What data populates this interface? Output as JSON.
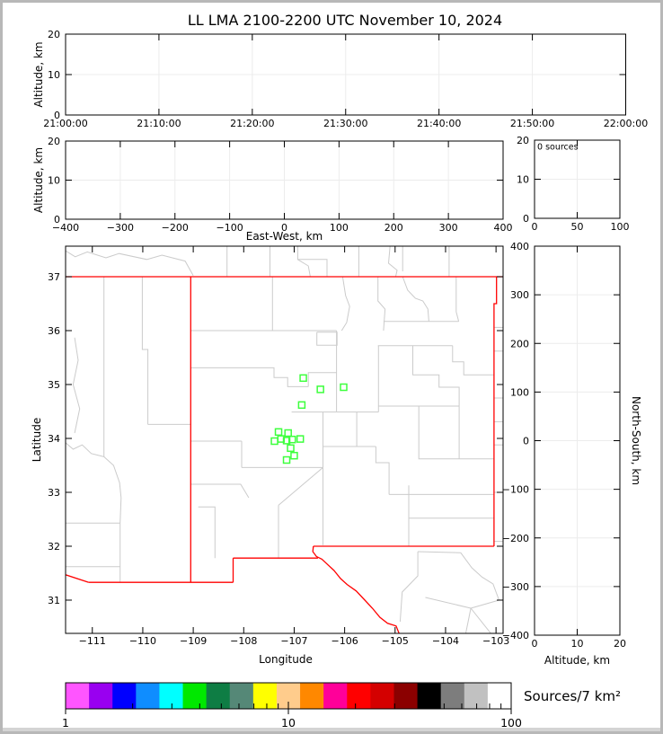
{
  "title": "LL LMA 2100-2200 UTC November 10, 2024",
  "frame": {
    "bg": "#ffffff",
    "border_color": "#b8b8b8",
    "band_color": "#d4d4d4"
  },
  "colors": {
    "axis": "#000000",
    "grid": "#ececec",
    "state_border": "#ff0000",
    "county_border": "#cbcbcb",
    "station": "#3dff3d"
  },
  "panels": {
    "time_altitude": {
      "y_label": "Altitude, km",
      "x_tick_labels": [
        "21:00:00",
        "21:10:00",
        "21:20:00",
        "21:30:00",
        "21:40:00",
        "21:50:00",
        "22:00:00"
      ],
      "y_tick_labels": [
        "0",
        "10",
        "20"
      ]
    },
    "eastwest_altitude": {
      "x_label": "East-West, km",
      "y_label": "Altitude, km",
      "x_tick_labels": [
        "−400",
        "−300",
        "−200",
        "−100",
        "0",
        "100",
        "200",
        "300",
        "400"
      ],
      "y_tick_labels": [
        "0",
        "10",
        "20"
      ]
    },
    "altitude_histogram": {
      "annotation": "0 sources",
      "x_tick_labels": [
        "0",
        "50",
        "100"
      ],
      "y_tick_labels": [
        "0",
        "10",
        "20"
      ]
    },
    "map": {
      "x_label": "Longitude",
      "y_label": "Latitude",
      "x_tick_values": [
        -111,
        -110,
        -109,
        -108,
        -107,
        -106,
        -105,
        -104,
        -103
      ],
      "x_tick_labels": [
        "−111",
        "−110",
        "−109",
        "−108",
        "−107",
        "−106",
        "−105",
        "−104",
        "−103"
      ],
      "y_tick_values": [
        31,
        32,
        33,
        34,
        35,
        36,
        37
      ],
      "y_tick_labels": [
        "31",
        "32",
        "33",
        "34",
        "35",
        "36",
        "37"
      ],
      "lon_range": [
        -111.53,
        -102.86
      ],
      "lat_range": [
        30.383,
        37.567
      ],
      "stations": [
        [
          -106.82,
          35.12
        ],
        [
          -106.48,
          34.91
        ],
        [
          -106.02,
          34.95
        ],
        [
          -106.85,
          34.62
        ],
        [
          -107.31,
          34.12
        ],
        [
          -107.12,
          34.1
        ],
        [
          -107.39,
          33.95
        ],
        [
          -107.26,
          33.99
        ],
        [
          -107.15,
          33.96
        ],
        [
          -107.04,
          33.98
        ],
        [
          -106.88,
          33.99
        ],
        [
          -107.07,
          33.82
        ],
        [
          -107.0,
          33.68
        ],
        [
          -107.15,
          33.6
        ]
      ],
      "state_borders": [
        [
          [
            -111.53,
            37.0
          ],
          [
            -102.86,
            37.0
          ]
        ],
        [
          [
            -109.05,
            37.0
          ],
          [
            -109.05,
            31.33
          ]
        ],
        [
          [
            -102.99,
            37.0
          ],
          [
            -102.99,
            36.5
          ],
          [
            -103.04,
            36.5
          ],
          [
            -103.04,
            32.0
          ]
        ],
        [
          [
            -103.04,
            32.0
          ],
          [
            -106.62,
            32.0
          ]
        ],
        [
          [
            -106.62,
            32.0
          ],
          [
            -106.63,
            31.9
          ],
          [
            -106.56,
            31.81
          ],
          [
            -106.45,
            31.76
          ],
          [
            -106.36,
            31.68
          ],
          [
            -106.21,
            31.55
          ],
          [
            -106.08,
            31.4
          ],
          [
            -105.95,
            31.29
          ],
          [
            -105.77,
            31.17
          ],
          [
            -105.6,
            31.0
          ],
          [
            -105.45,
            30.85
          ],
          [
            -105.3,
            30.68
          ],
          [
            -105.15,
            30.57
          ],
          [
            -104.98,
            30.52
          ],
          [
            -104.92,
            30.38
          ]
        ],
        [
          [
            -106.53,
            31.78
          ],
          [
            -108.21,
            31.78
          ]
        ],
        [
          [
            -108.21,
            31.78
          ],
          [
            -108.21,
            31.33
          ]
        ],
        [
          [
            -108.21,
            31.33
          ],
          [
            -111.07,
            31.33
          ]
        ],
        [
          [
            -111.07,
            31.33
          ],
          [
            -111.53,
            31.47
          ]
        ]
      ],
      "county_borders": [
        [
          [
            -111.53,
            37.48
          ],
          [
            -111.34,
            37.37
          ],
          [
            -111.1,
            37.46
          ],
          [
            -110.73,
            37.35
          ],
          [
            -110.47,
            37.43
          ],
          [
            -109.92,
            37.32
          ],
          [
            -109.62,
            37.4
          ],
          [
            -109.16,
            37.29
          ],
          [
            -109.0,
            37.02
          ]
        ],
        [
          [
            -108.33,
            37.57
          ],
          [
            -108.33,
            37.0
          ]
        ],
        [
          [
            -107.48,
            37.57
          ],
          [
            -107.48,
            37.0
          ]
        ],
        [
          [
            -106.93,
            37.57
          ],
          [
            -106.93,
            37.32
          ],
          [
            -106.35,
            37.32
          ],
          [
            -106.35,
            37.0
          ]
        ],
        [
          [
            -106.93,
            37.32
          ],
          [
            -106.72,
            37.2
          ],
          [
            -106.68,
            37.0
          ]
        ],
        [
          [
            -105.72,
            37.57
          ],
          [
            -105.72,
            37.0
          ]
        ],
        [
          [
            -105.1,
            37.57
          ],
          [
            -105.13,
            37.25
          ],
          [
            -104.96,
            37.12
          ],
          [
            -104.99,
            37.0
          ]
        ],
        [
          [
            -104.85,
            37.57
          ],
          [
            -104.85,
            37.1
          ]
        ],
        [
          [
            -103.93,
            37.57
          ],
          [
            -103.93,
            37.0
          ]
        ],
        [
          [
            -110.77,
            37.0
          ],
          [
            -110.77,
            33.66
          ]
        ],
        [
          [
            -110.01,
            37.0
          ],
          [
            -110.01,
            35.65
          ],
          [
            -109.9,
            35.65
          ],
          [
            -109.9,
            34.26
          ]
        ],
        [
          [
            -109.9,
            34.26
          ],
          [
            -109.05,
            34.26
          ]
        ],
        [
          [
            -111.53,
            33.92
          ],
          [
            -111.38,
            33.8
          ],
          [
            -111.2,
            33.88
          ],
          [
            -111.02,
            33.72
          ],
          [
            -110.77,
            33.66
          ]
        ],
        [
          [
            -110.77,
            33.66
          ],
          [
            -110.58,
            33.5
          ],
          [
            -110.46,
            33.18
          ],
          [
            -110.43,
            32.9
          ],
          [
            -110.45,
            32.43
          ]
        ],
        [
          [
            -111.53,
            32.43
          ],
          [
            -110.45,
            32.43
          ]
        ],
        [
          [
            -110.45,
            32.43
          ],
          [
            -110.45,
            31.33
          ]
        ],
        [
          [
            -111.53,
            31.62
          ],
          [
            -110.45,
            31.62
          ]
        ],
        [
          [
            -111.35,
            35.87
          ],
          [
            -111.28,
            35.45
          ],
          [
            -111.38,
            35.0
          ],
          [
            -111.25,
            34.55
          ],
          [
            -111.35,
            34.1
          ]
        ],
        [
          [
            -109.05,
            36.0
          ],
          [
            -106.16,
            36.0
          ]
        ],
        [
          [
            -107.43,
            37.0
          ],
          [
            -107.43,
            36.0
          ]
        ],
        [
          [
            -106.04,
            37.0
          ],
          [
            -105.98,
            36.65
          ],
          [
            -105.9,
            36.45
          ],
          [
            -105.96,
            36.15
          ],
          [
            -106.06,
            36.0
          ]
        ],
        [
          [
            -105.34,
            37.0
          ],
          [
            -105.34,
            36.55
          ],
          [
            -105.2,
            36.4
          ],
          [
            -105.23,
            36.0
          ]
        ],
        [
          [
            -103.79,
            37.0
          ],
          [
            -103.79,
            36.35
          ],
          [
            -103.74,
            36.17
          ]
        ],
        [
          [
            -105.23,
            36.17
          ],
          [
            -103.74,
            36.17
          ]
        ],
        [
          [
            -104.85,
            37.0
          ],
          [
            -104.75,
            36.75
          ],
          [
            -104.6,
            36.6
          ],
          [
            -104.45,
            36.55
          ],
          [
            -104.35,
            36.4
          ],
          [
            -104.33,
            36.17
          ]
        ],
        [
          [
            -106.55,
            35.97
          ],
          [
            -106.15,
            35.97
          ],
          [
            -106.15,
            35.73
          ],
          [
            -106.55,
            35.73
          ],
          [
            -106.55,
            35.97
          ]
        ],
        [
          [
            -106.16,
            36.0
          ],
          [
            -106.16,
            34.5
          ]
        ],
        [
          [
            -109.05,
            35.31
          ],
          [
            -107.4,
            35.31
          ],
          [
            -107.4,
            35.13
          ],
          [
            -107.13,
            35.13
          ],
          [
            -107.13,
            34.96
          ],
          [
            -106.72,
            34.96
          ]
        ],
        [
          [
            -106.72,
            34.96
          ],
          [
            -106.72,
            35.22
          ],
          [
            -106.16,
            35.22
          ]
        ],
        [
          [
            -107.05,
            34.49
          ],
          [
            -105.33,
            34.49
          ]
        ],
        [
          [
            -105.33,
            35.72
          ],
          [
            -105.33,
            34.49
          ]
        ],
        [
          [
            -105.34,
            35.72
          ],
          [
            -103.86,
            35.72
          ]
        ],
        [
          [
            -103.86,
            35.72
          ],
          [
            -103.86,
            35.42
          ],
          [
            -103.64,
            35.42
          ],
          [
            -103.64,
            35.18
          ],
          [
            -103.04,
            35.18
          ]
        ],
        [
          [
            -104.65,
            35.72
          ],
          [
            -104.65,
            35.18
          ],
          [
            -104.13,
            35.18
          ],
          [
            -104.13,
            34.95
          ],
          [
            -103.73,
            34.95
          ],
          [
            -103.73,
            34.6
          ]
        ],
        [
          [
            -106.43,
            34.49
          ],
          [
            -106.43,
            33.46
          ]
        ],
        [
          [
            -106.43,
            33.85
          ],
          [
            -105.38,
            33.85
          ]
        ],
        [
          [
            -105.76,
            34.49
          ],
          [
            -105.76,
            33.85
          ]
        ],
        [
          [
            -105.38,
            33.85
          ],
          [
            -105.38,
            33.55
          ],
          [
            -105.12,
            33.55
          ],
          [
            -105.12,
            32.96
          ]
        ],
        [
          [
            -108.04,
            33.46
          ],
          [
            -106.43,
            33.46
          ]
        ],
        [
          [
            -106.43,
            33.46
          ],
          [
            -107.31,
            32.76
          ]
        ],
        [
          [
            -107.31,
            32.76
          ],
          [
            -107.31,
            31.78
          ]
        ],
        [
          [
            -106.43,
            33.46
          ],
          [
            -106.43,
            32.02
          ]
        ],
        [
          [
            -109.05,
            33.15
          ],
          [
            -108.06,
            33.15
          ],
          [
            -107.9,
            32.9
          ]
        ],
        [
          [
            -108.9,
            32.73
          ],
          [
            -108.57,
            32.73
          ],
          [
            -108.57,
            31.78
          ]
        ],
        [
          [
            -109.05,
            33.95
          ],
          [
            -108.04,
            33.95
          ]
        ],
        [
          [
            -108.04,
            33.95
          ],
          [
            -108.04,
            33.46
          ]
        ],
        [
          [
            -104.53,
            34.6
          ],
          [
            -104.53,
            33.62
          ],
          [
            -103.04,
            33.62
          ]
        ],
        [
          [
            -105.33,
            34.6
          ],
          [
            -103.73,
            34.6
          ]
        ],
        [
          [
            -103.73,
            34.6
          ],
          [
            -103.73,
            33.62
          ]
        ],
        [
          [
            -104.73,
            33.13
          ],
          [
            -104.73,
            32.0
          ]
        ],
        [
          [
            -105.12,
            32.96
          ],
          [
            -103.04,
            32.96
          ]
        ],
        [
          [
            -104.73,
            32.52
          ],
          [
            -103.04,
            32.52
          ]
        ],
        [
          [
            -103.7,
            31.88
          ],
          [
            -103.48,
            31.6
          ],
          [
            -103.28,
            31.43
          ],
          [
            -103.06,
            31.3
          ],
          [
            -102.94,
            31.0
          ]
        ],
        [
          [
            -104.55,
            31.9
          ],
          [
            -103.7,
            31.88
          ]
        ],
        [
          [
            -104.55,
            31.9
          ],
          [
            -104.55,
            31.45
          ],
          [
            -104.86,
            31.15
          ],
          [
            -104.9,
            30.6
          ]
        ],
        [
          [
            -104.4,
            31.05
          ],
          [
            -103.5,
            30.85
          ]
        ],
        [
          [
            -103.5,
            30.85
          ],
          [
            -102.94,
            31.0
          ]
        ],
        [
          [
            -103.5,
            30.85
          ],
          [
            -103.6,
            30.38
          ]
        ],
        [
          [
            -103.5,
            30.85
          ],
          [
            -103.1,
            30.38
          ]
        ],
        [
          [
            -103.04,
            36.06
          ],
          [
            -102.86,
            36.06
          ]
        ],
        [
          [
            -103.04,
            35.62
          ],
          [
            -102.86,
            35.62
          ]
        ],
        [
          [
            -103.04,
            34.75
          ],
          [
            -102.86,
            34.75
          ]
        ],
        [
          [
            -103.04,
            34.31
          ],
          [
            -102.86,
            34.31
          ]
        ],
        [
          [
            -103.04,
            33.88
          ],
          [
            -102.86,
            33.88
          ]
        ],
        [
          [
            -103.04,
            33.0
          ],
          [
            -102.86,
            33.0
          ]
        ],
        [
          [
            -103.04,
            32.09
          ],
          [
            -102.86,
            32.09
          ]
        ]
      ]
    },
    "northsouth_altitude": {
      "x_label": "Altitude, km",
      "y_label": "North-South, km",
      "x_tick_labels": [
        "0",
        "10",
        "20"
      ],
      "y_tick_labels": [
        "400",
        "300",
        "200",
        "100",
        "0",
        "−100",
        "−200",
        "−300",
        "−400"
      ]
    },
    "colorbar": {
      "label": "Sources/7 km²",
      "scale": "log",
      "range": [
        1,
        100
      ],
      "tick_labels": [
        "1",
        "10",
        "100"
      ],
      "block_colors": [
        "#ff55ff",
        "#9900f0",
        "#0000ff",
        "#0f8dff",
        "#00ffff",
        "#00e800",
        "#0e7d44",
        "#558877",
        "#ffff00",
        "#ffcc8c",
        "#ff8800",
        "#ff0099",
        "#ff0000",
        "#d40000",
        "#8b0000",
        "#000000",
        "#7d7d7d",
        "#c1c1c1",
        "#ffffff"
      ]
    }
  }
}
